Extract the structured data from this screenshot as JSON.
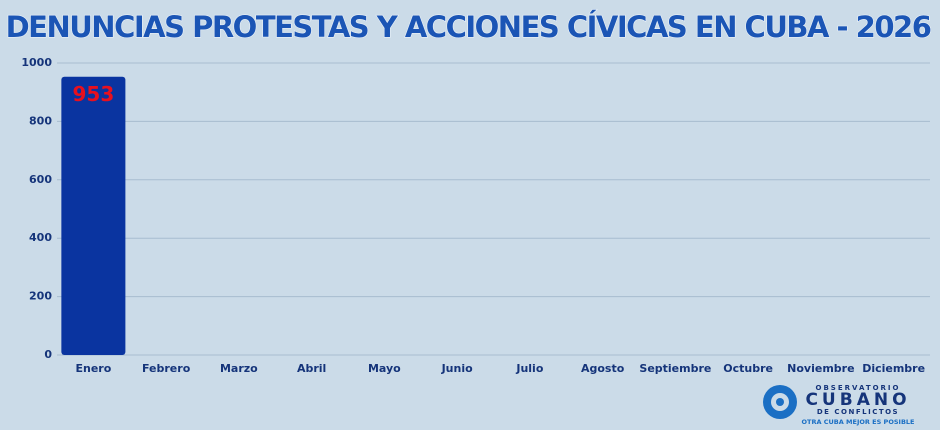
{
  "chart_data": {
    "type": "bar",
    "title": "DENUNCIAS PROTESTAS Y ACCIONES CÍVICAS EN CUBA - 2026",
    "categories": [
      "Enero",
      "Febrero",
      "Marzo",
      "Abril",
      "Mayo",
      "Junio",
      "Julio",
      "Agosto",
      "Septiembre",
      "Octubre",
      "Noviembre",
      "Diciembre"
    ],
    "values": [
      953,
      null,
      null,
      null,
      null,
      null,
      null,
      null,
      null,
      null,
      null,
      null
    ],
    "color": "#0a34a0",
    "value_label_color": "#e8101e",
    "ylim": [
      0,
      1000
    ],
    "yticks": [
      0,
      200,
      400,
      600,
      800,
      1000
    ],
    "grid": true,
    "logo": {
      "top": "OBSERVATORIO",
      "name": "CUBANO",
      "sub": "DE CONFLICTOS",
      "tagline": "OTRA CUBA MEJOR ES POSIBLE"
    }
  }
}
